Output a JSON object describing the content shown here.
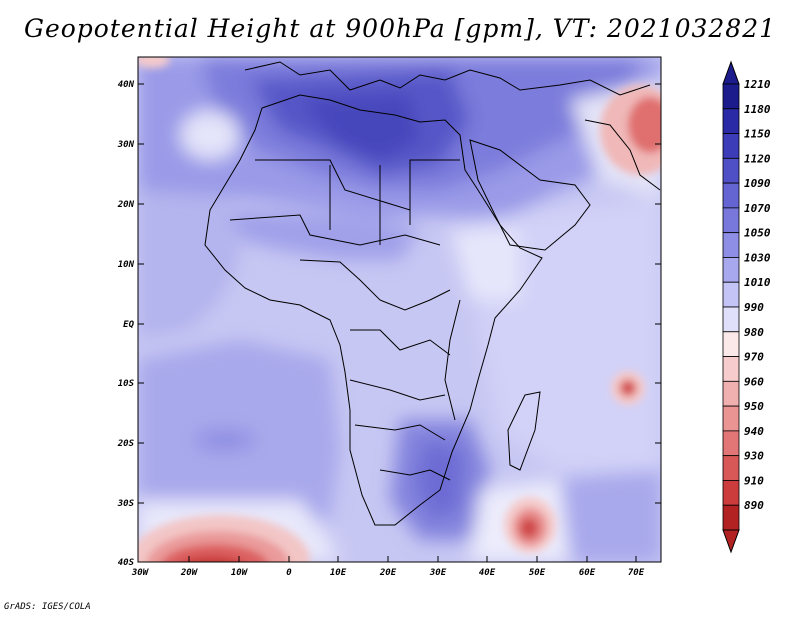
{
  "title": "Geopotential Height at 900hPa [gpm], VT: 2021032821",
  "credit": "GrADS: IGES/COLA",
  "map": {
    "variable": "Geopotential Height",
    "level": "900hPa",
    "units": "gpm",
    "valid_time": "2021032821",
    "lon_range": [
      -30,
      76
    ],
    "lat_range": [
      -40,
      45
    ],
    "x_ticks": [
      "30W",
      "20W",
      "10W",
      "0",
      "10E",
      "20E",
      "30E",
      "40E",
      "50E",
      "60E",
      "70E"
    ],
    "y_ticks": [
      "40N",
      "30N",
      "20N",
      "10N",
      "EQ",
      "10S",
      "20S",
      "30S",
      "40S"
    ]
  },
  "colorbar": {
    "labels": [
      "1210",
      "1180",
      "1150",
      "1120",
      "1090",
      "1070",
      "1050",
      "1030",
      "1010",
      "990",
      "980",
      "970",
      "960",
      "950",
      "940",
      "930",
      "910",
      "890"
    ],
    "colors": [
      "#1c1c8c",
      "#2a2aa6",
      "#3c3cb8",
      "#5050c6",
      "#6464d2",
      "#7878dc",
      "#8e8ee6",
      "#a8a8ee",
      "#c4c4f6",
      "#e0e0fa",
      "#fbe8e8",
      "#f6cccc",
      "#f0b0b0",
      "#ea9494",
      "#e27676",
      "#d85858",
      "#cc3c3c",
      "#b22222"
    ]
  }
}
